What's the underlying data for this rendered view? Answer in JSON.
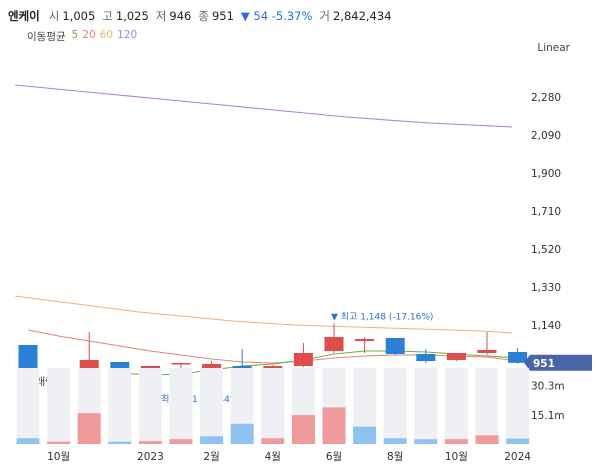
{
  "quote": {
    "name": "엔케이",
    "open_label": "시",
    "open": "1,005",
    "high_label": "고",
    "high": "1,025",
    "low_label": "저",
    "low": "946",
    "close_label": "종",
    "close": "951",
    "change": "▼ 54 -5.37%",
    "volume_label": "거",
    "volume": "2,842,434"
  },
  "ma": {
    "title": "이동평균",
    "p5": "5",
    "p20": "20",
    "p60": "60",
    "p120": "120"
  },
  "scale_label": "Linear",
  "colors": {
    "up": "#e04b4b",
    "down": "#2a7fd6",
    "ma5": "#6ab04c",
    "ma20": "#e8837b",
    "ma60": "#f0b27a",
    "ma120": "#b07ee0",
    "vol_up": "#ef9a9a",
    "vol_down": "#90c2f0",
    "price_tag": "#4a64a8"
  },
  "chart_data": {
    "type": "candlestick",
    "y_ticks": [
      "2,280",
      "2,090",
      "1,900",
      "1,710",
      "1,520",
      "1,330",
      "1,140"
    ],
    "ylim": [
      830,
      2410
    ],
    "x_ticks": [
      {
        "label": "10월",
        "index": 1
      },
      {
        "label": "2023",
        "index": 4
      },
      {
        "label": "2월",
        "index": 6
      },
      {
        "label": "4월",
        "index": 8
      },
      {
        "label": "6월",
        "index": 10
      },
      {
        "label": "8월",
        "index": 12
      },
      {
        "label": "10월",
        "index": 14
      },
      {
        "label": "2024",
        "index": 16
      }
    ],
    "candles": [
      {
        "o": 1040,
        "h": 1040,
        "l": 845,
        "c": 865
      },
      {
        "o": 865,
        "h": 880,
        "l": 845,
        "c": 855
      },
      {
        "o": 900,
        "h": 1105,
        "l": 860,
        "c": 965
      },
      {
        "o": 955,
        "h": 955,
        "l": 845,
        "c": 850
      },
      {
        "o": 870,
        "h": 930,
        "l": 831,
        "c": 935
      },
      {
        "o": 945,
        "h": 950,
        "l": 895,
        "c": 950
      },
      {
        "o": 925,
        "h": 960,
        "l": 870,
        "c": 945
      },
      {
        "o": 935,
        "h": 1020,
        "l": 895,
        "c": 910
      },
      {
        "o": 915,
        "h": 940,
        "l": 910,
        "c": 935
      },
      {
        "o": 935,
        "h": 1050,
        "l": 930,
        "c": 1000
      },
      {
        "o": 1010,
        "h": 1148,
        "l": 1000,
        "c": 1080
      },
      {
        "o": 1060,
        "h": 1080,
        "l": 1000,
        "c": 1070
      },
      {
        "o": 1075,
        "h": 1075,
        "l": 990,
        "c": 995
      },
      {
        "o": 995,
        "h": 1020,
        "l": 950,
        "c": 960
      },
      {
        "o": 965,
        "h": 995,
        "l": 960,
        "c": 1000
      },
      {
        "o": 1000,
        "h": 1105,
        "l": 990,
        "c": 1015
      },
      {
        "o": 1005,
        "h": 1025,
        "l": 946,
        "c": 951
      }
    ],
    "ma120": [
      2340,
      2300,
      2260,
      2220,
      2180,
      2150,
      2130
    ],
    "ma60": [
      1285,
      1265,
      1245,
      1225,
      1205,
      1190,
      1175,
      1160,
      1150,
      1140,
      1135,
      1130,
      1125,
      1120,
      1115,
      1110,
      1100
    ],
    "ma20": [
      1115,
      1085,
      1060,
      1035,
      1010,
      990,
      970,
      955,
      950,
      960,
      975,
      985,
      990,
      990,
      985,
      980,
      960
    ],
    "ma5": [
      null,
      null,
      null,
      900,
      890,
      895,
      915,
      935,
      945,
      965,
      995,
      1010,
      1010,
      1005,
      995,
      985,
      975
    ],
    "volumes": [
      {
        "v": 3.0,
        "up": false
      },
      {
        "v": 1.2,
        "up": true
      },
      {
        "v": 16.0,
        "up": true
      },
      {
        "v": 1.2,
        "up": false
      },
      {
        "v": 1.5,
        "up": true
      },
      {
        "v": 2.5,
        "up": true
      },
      {
        "v": 4.0,
        "up": false
      },
      {
        "v": 10.5,
        "up": false
      },
      {
        "v": 3.0,
        "up": true
      },
      {
        "v": 15.0,
        "up": true
      },
      {
        "v": 19.0,
        "up": true
      },
      {
        "v": 9.0,
        "up": false
      },
      {
        "v": 3.0,
        "up": false
      },
      {
        "v": 2.5,
        "up": false
      },
      {
        "v": 2.5,
        "up": true
      },
      {
        "v": 4.5,
        "up": true
      },
      {
        "v": 2.8,
        "up": false
      }
    ],
    "vol_title": "거래량",
    "vol_ticks": [
      "30.3m",
      "15.1m"
    ],
    "vol_tick_values": [
      30.3,
      15.1
    ],
    "vol_max": 40.5,
    "annot_high": "▼ 최고 1,148 (-17.16%)",
    "annot_low": "▲ 최저 831 (14.44%)",
    "last_price": "951",
    "last_value": 951
  }
}
